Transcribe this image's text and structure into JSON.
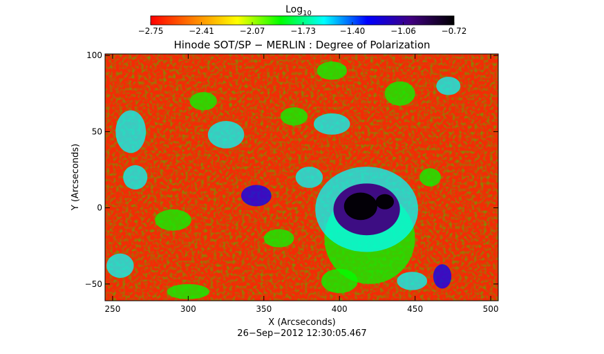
{
  "chart_data": {
    "type": "heatmap",
    "title": "Hinode SOT/SP − MERLIN : Degree of Polarization",
    "timestamp": "26−Sep−2012 12:30:05.467",
    "xlabel": "X (Arcseconds)",
    "ylabel": "Y (Arcseconds)",
    "xlim": [
      245,
      505
    ],
    "ylim": [
      -61,
      101
    ],
    "x_ticks": [
      250,
      300,
      350,
      400,
      450,
      500
    ],
    "x_tick_labels": [
      "250",
      "300",
      "350",
      "400",
      "450",
      "500"
    ],
    "y_ticks": [
      -50,
      0,
      50,
      100
    ],
    "y_tick_labels": [
      "−50",
      "0",
      "50",
      "100"
    ],
    "colorbar": {
      "label_base": "Log",
      "label_sub": "10",
      "range": [
        -2.75,
        -0.72
      ],
      "ticks": [
        -2.75,
        -2.41,
        -2.07,
        -1.73,
        -1.4,
        -1.06,
        -0.72
      ],
      "tick_labels": [
        "−2.75",
        "−2.41",
        "−2.07",
        "−1.73",
        "−1.40",
        "−1.06",
        "−0.72"
      ],
      "colormap": [
        "#ff0000",
        "#ff8000",
        "#ffff00",
        "#00ff00",
        "#00ffff",
        "#0000ff",
        "#400080",
        "#000000"
      ]
    },
    "features": [
      {
        "kind": "sunspot_umbra",
        "x": 414,
        "y": 1,
        "rx": 11,
        "ry": 9,
        "value": -0.72
      },
      {
        "kind": "sunspot_umbra",
        "x": 430,
        "y": 4,
        "rx": 6,
        "ry": 5,
        "value": -0.8
      },
      {
        "kind": "sunspot_penumbra",
        "x": 418,
        "y": -1,
        "rx": 22,
        "ry": 17,
        "value": -1.05
      },
      {
        "kind": "plage_halo",
        "x": 418,
        "y": -1,
        "rx": 34,
        "ry": 28,
        "value": -1.6
      },
      {
        "kind": "plage_halo",
        "x": 420,
        "y": -20,
        "rx": 30,
        "ry": 30,
        "value": -2.0
      },
      {
        "kind": "network",
        "x": 345,
        "y": 8,
        "rx": 10,
        "ry": 7,
        "value": -1.3
      },
      {
        "kind": "network",
        "x": 325,
        "y": 48,
        "rx": 12,
        "ry": 9,
        "value": -1.7
      },
      {
        "kind": "network",
        "x": 262,
        "y": 50,
        "rx": 10,
        "ry": 14,
        "value": -1.5
      },
      {
        "kind": "network",
        "x": 265,
        "y": 20,
        "rx": 8,
        "ry": 8,
        "value": -1.5
      },
      {
        "kind": "network",
        "x": 370,
        "y": 60,
        "rx": 9,
        "ry": 6,
        "value": -1.8
      },
      {
        "kind": "network",
        "x": 395,
        "y": 55,
        "rx": 12,
        "ry": 7,
        "value": -1.6
      },
      {
        "kind": "network",
        "x": 380,
        "y": 20,
        "rx": 9,
        "ry": 7,
        "value": -1.5
      },
      {
        "kind": "network",
        "x": 290,
        "y": -8,
        "rx": 12,
        "ry": 7,
        "value": -1.8
      },
      {
        "kind": "network",
        "x": 360,
        "y": -20,
        "rx": 10,
        "ry": 6,
        "value": -1.9
      },
      {
        "kind": "network",
        "x": 440,
        "y": 75,
        "rx": 10,
        "ry": 8,
        "value": -1.9
      },
      {
        "kind": "network",
        "x": 472,
        "y": 80,
        "rx": 8,
        "ry": 6,
        "value": -1.5
      },
      {
        "kind": "network",
        "x": 448,
        "y": -48,
        "rx": 10,
        "ry": 6,
        "value": -1.5
      },
      {
        "kind": "network",
        "x": 468,
        "y": -45,
        "rx": 6,
        "ry": 8,
        "value": -1.3
      },
      {
        "kind": "network",
        "x": 400,
        "y": -48,
        "rx": 12,
        "ry": 8,
        "value": -1.9
      },
      {
        "kind": "network",
        "x": 300,
        "y": -55,
        "rx": 14,
        "ry": 5,
        "value": -1.9
      },
      {
        "kind": "network",
        "x": 255,
        "y": -38,
        "rx": 9,
        "ry": 8,
        "value": -1.7
      },
      {
        "kind": "network",
        "x": 395,
        "y": 90,
        "rx": 10,
        "ry": 6,
        "value": -2.0
      },
      {
        "kind": "network",
        "x": 310,
        "y": 70,
        "rx": 9,
        "ry": 6,
        "value": -2.0
      },
      {
        "kind": "network",
        "x": 460,
        "y": 20,
        "rx": 7,
        "ry": 6,
        "value": -1.8
      }
    ]
  }
}
